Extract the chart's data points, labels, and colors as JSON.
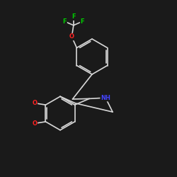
{
  "background_color": "#1a1a1a",
  "bond_color": "#d8d8d8",
  "atom_colors": {
    "F": "#00cc00",
    "O": "#ff2222",
    "N": "#4444ff",
    "C": "#d8d8d8"
  },
  "figsize": [
    2.5,
    2.5
  ],
  "dpi": 100
}
